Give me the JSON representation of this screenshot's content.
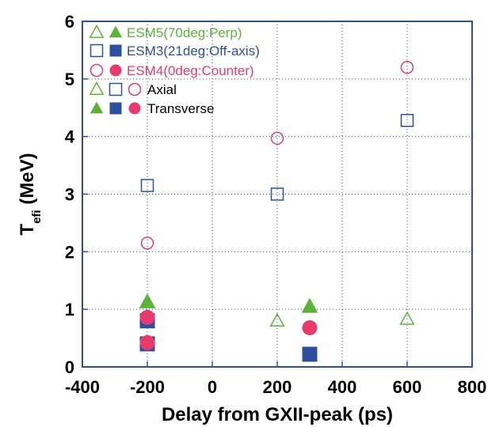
{
  "chart_data": {
    "type": "scatter",
    "xlabel": "Delay from GXII-peak (ps)",
    "ylabel_main": "T",
    "ylabel_sub": "efi",
    "ylabel_unit": " (MeV)",
    "xlim": [
      -400,
      800
    ],
    "ylim": [
      0,
      6
    ],
    "xticks": [
      -400,
      -200,
      0,
      200,
      400,
      600,
      800
    ],
    "yticks": [
      0,
      1,
      2,
      3,
      4,
      5,
      6
    ],
    "grid": true,
    "legend_position": "top-left",
    "series": [
      {
        "name": "ESM5(70deg:Perp)",
        "shape": "triangle",
        "color": "#5cb338",
        "axial": [
          {
            "x": 200,
            "y": 0.8
          },
          {
            "x": 600,
            "y": 0.83
          }
        ],
        "transverse": [
          {
            "x": -200,
            "y": 1.13
          },
          {
            "x": 300,
            "y": 1.05
          }
        ]
      },
      {
        "name": "ESM3(21deg:Off-axis)",
        "shape": "square",
        "color": "#2c4f9e",
        "axial": [
          {
            "x": -200,
            "y": 3.15
          },
          {
            "x": 200,
            "y": 3.0
          },
          {
            "x": 600,
            "y": 4.28
          }
        ],
        "transverse": [
          {
            "x": -200,
            "y": 0.8
          },
          {
            "x": -200,
            "y": 0.4
          },
          {
            "x": 300,
            "y": 0.22
          }
        ]
      },
      {
        "name": "ESM4(0deg:Counter)",
        "shape": "circle",
        "color": "#e83a6b",
        "axial": [
          {
            "x": -200,
            "y": 2.15
          },
          {
            "x": 200,
            "y": 3.97
          },
          {
            "x": 600,
            "y": 5.2
          }
        ],
        "transverse": [
          {
            "x": -200,
            "y": 0.86
          },
          {
            "x": -200,
            "y": 0.42
          },
          {
            "x": 300,
            "y": 0.68
          }
        ]
      }
    ],
    "legend_entries": [
      {
        "label": "ESM5(70deg:Perp)",
        "color": "#5cb338"
      },
      {
        "label": "ESM3(21deg:Off-axis)",
        "color": "#2c4f9e"
      },
      {
        "label": "ESM4(0deg:Counter)",
        "color": "#e83a6b"
      },
      {
        "label": "Axial",
        "color": "#000000"
      },
      {
        "label": "Transverse",
        "color": "#000000"
      }
    ]
  }
}
